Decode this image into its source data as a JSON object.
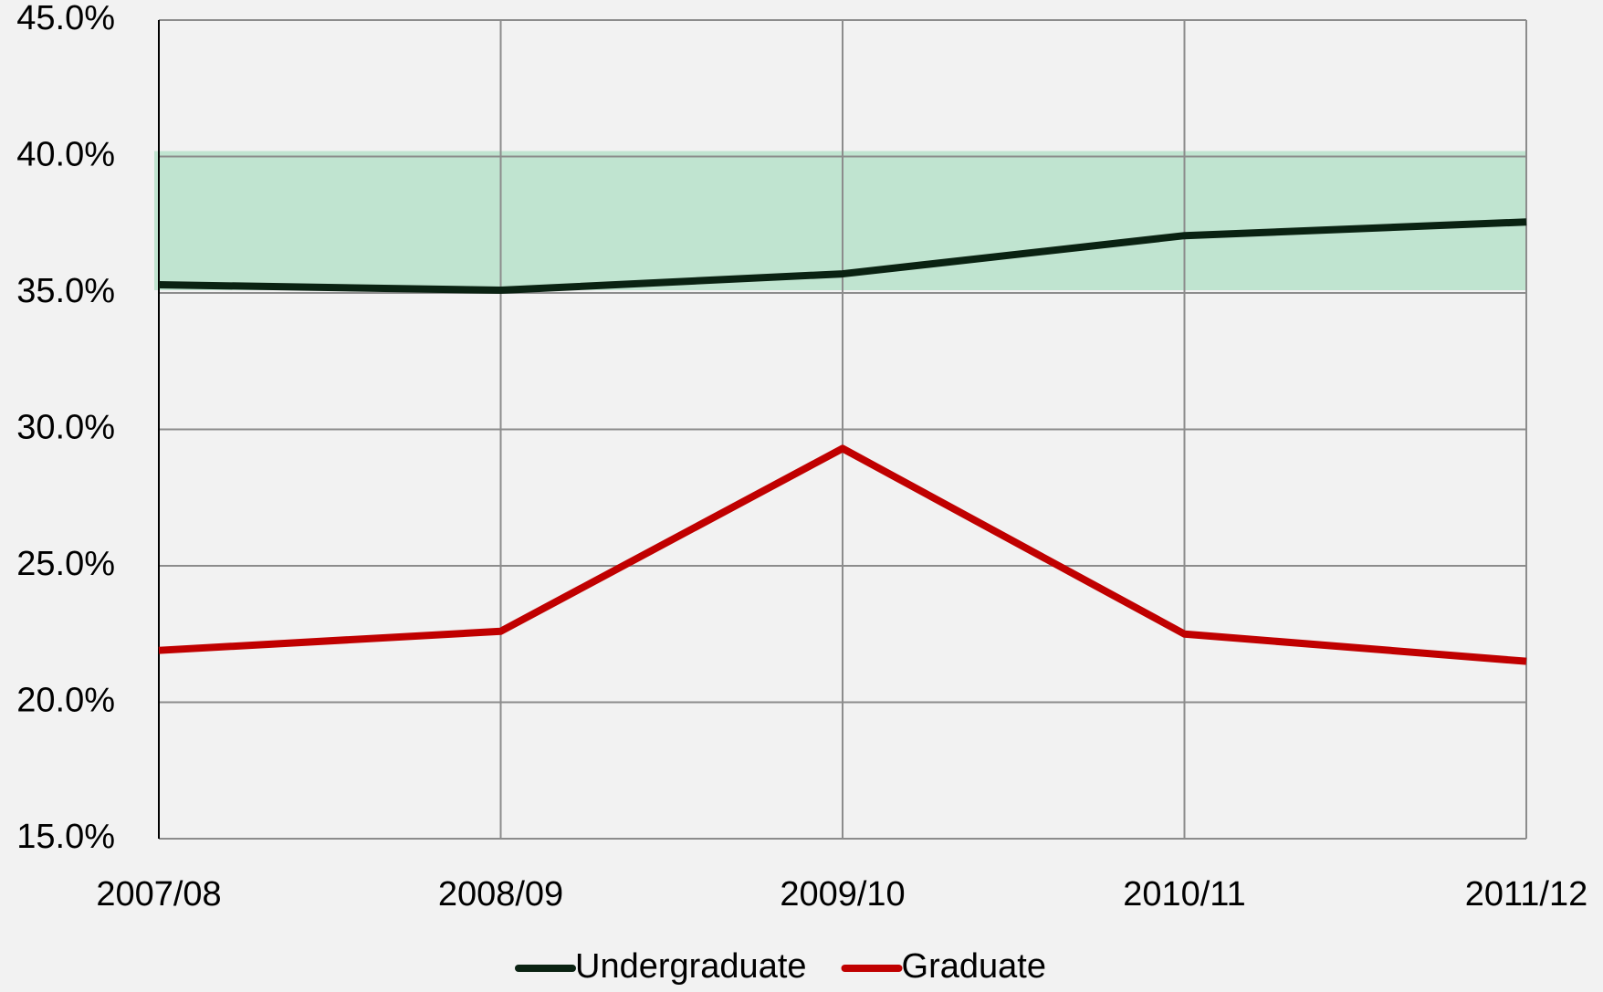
{
  "chart_data": {
    "type": "line",
    "categories": [
      "2007/08",
      "2008/09",
      "2009/10",
      "2010/11",
      "2011/12"
    ],
    "series": [
      {
        "name": "Undergraduate",
        "color": "#0a2212",
        "values": [
          35.3,
          35.1,
          35.7,
          37.1,
          37.6
        ]
      },
      {
        "name": "Graduate",
        "color": "#c00000",
        "values": [
          21.9,
          22.6,
          29.3,
          22.5,
          21.5
        ]
      }
    ],
    "band": {
      "from": 35.1,
      "to": 40.2,
      "color": "#c0e4d0"
    },
    "ylim": [
      15,
      45
    ],
    "yticks": [
      {
        "value": 15,
        "label": "15.0%"
      },
      {
        "value": 20,
        "label": "20.0%"
      },
      {
        "value": 25,
        "label": "25.0%"
      },
      {
        "value": 30,
        "label": "30.0%"
      },
      {
        "value": 35,
        "label": "35.0%"
      },
      {
        "value": 40,
        "label": "40.0%"
      },
      {
        "value": 45,
        "label": "45.0%"
      }
    ],
    "grid": true,
    "legend": "bottom"
  }
}
